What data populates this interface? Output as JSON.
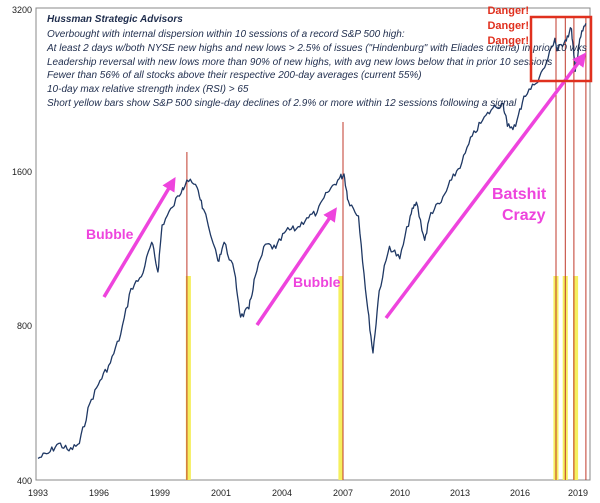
{
  "chart_data": {
    "type": "line",
    "title": "Hussman Strategic Advisors",
    "subtitle_lines": [
      "Overbought with internal dispersion within 10 sessions of a record S&P 500 high:",
      "At least 2 days w/both NYSE new highs and new lows > 2.5% of issues (\"Hindenburg\" with Eliades criteria) in prior 10 wks",
      "Leadership reversal with new lows more than 90% of new highs, with avg new lows below that in prior 10 sessions",
      "Fewer than 56% of all stocks above their respective 200-day averages (current 55%)",
      "10-day max relative strength index (RSI) > 65",
      "Short yellow bars show S&P 500 single-day declines of 2.9% or more within 12 sessions following a signal"
    ],
    "y_scale": "log",
    "ylim": [
      400,
      3200
    ],
    "y_ticks": [
      400,
      800,
      1600,
      3200
    ],
    "xlim": [
      1993.0,
      2019.6
    ],
    "x_ticks": [
      1993,
      1996,
      1999,
      2001,
      2004,
      2007,
      2010,
      2013,
      2016,
      2019
    ],
    "grid": false,
    "series": [
      {
        "x": [
          1993.0,
          1993.5,
          1994.0,
          1994.5,
          1995.0,
          1995.5,
          1996.0,
          1996.5,
          1997.0,
          1997.5,
          1998.0,
          1998.5,
          1998.8,
          1999.0,
          1999.5,
          2000.0,
          2000.2,
          2000.7,
          2001.0,
          2001.7,
          2002.0,
          2002.5,
          2002.8,
          2003.2,
          2003.5,
          2004.0,
          2004.5,
          2005.0,
          2005.5,
          2006.0,
          2006.5,
          2007.0,
          2007.5,
          2007.8,
          2008.0,
          2008.5,
          2008.9,
          2009.2,
          2009.5,
          2010.0,
          2010.5,
          2011.0,
          2011.3,
          2011.7,
          2012.0,
          2012.5,
          2013.0,
          2013.5,
          2014.0,
          2014.5,
          2015.0,
          2015.5,
          2015.7,
          2016.1,
          2016.5,
          2017.0,
          2017.5,
          2018.0,
          2018.1,
          2018.5,
          2018.8,
          2018.98,
          2019.2,
          2019.5
        ],
        "y": [
          440,
          450,
          470,
          455,
          470,
          560,
          620,
          670,
          760,
          930,
          980,
          1140,
          1000,
          1230,
          1330,
          1450,
          1500,
          1450,
          1320,
          1050,
          1140,
          1000,
          820,
          850,
          980,
          1130,
          1110,
          1200,
          1210,
          1270,
          1300,
          1420,
          1500,
          1540,
          1370,
          1280,
          880,
          700,
          920,
          1120,
          1060,
          1280,
          1360,
          1150,
          1300,
          1360,
          1500,
          1620,
          1820,
          1950,
          2060,
          2100,
          1900,
          1900,
          2170,
          2280,
          2460,
          2800,
          2650,
          2780,
          2920,
          2420,
          2790,
          2990
        ]
      }
    ],
    "signal_years": [
      2000.2,
      2007.75,
      2018.05,
      2018.5,
      2018.92,
      2019.5
    ],
    "decline_bar_years": [
      2000.22,
      2000.32,
      2007.6,
      2007.7,
      2018.0,
      2018.1,
      2018.45,
      2018.55,
      2018.95,
      2019.05
    ],
    "annotations": {
      "bubble1": "Bubble",
      "bubble2": "Bubble",
      "batshit": "Batshit",
      "crazy": "Crazy",
      "danger": [
        "Danger!",
        "Danger!",
        "Danger!"
      ]
    },
    "colors": {
      "line": "#1f3864",
      "signal": "#c0392b",
      "decline": "#f5ef5e",
      "annotation": "#ee44dd",
      "danger": "#e0301e"
    }
  }
}
